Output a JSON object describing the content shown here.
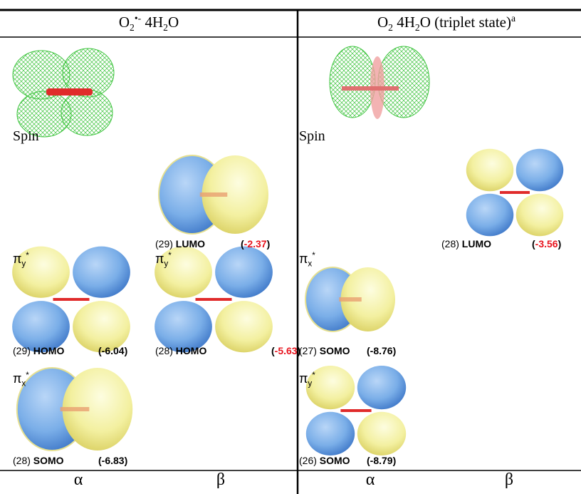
{
  "columns": [
    {
      "title": [
        "O",
        "2",
        "•-",
        " 4H",
        "2",
        "O"
      ],
      "spin_label": "Spin",
      "orbitals": [
        {
          "number": "(29)",
          "name": "LUMO",
          "energy": [
            "(",
            "-2.37",
            ")"
          ],
          "highlight": true
        },
        {
          "label": [
            "π",
            "y",
            "*"
          ],
          "number": "(29)",
          "name": "HOMO",
          "energy": [
            "(",
            "-6.04",
            ")"
          ]
        },
        {
          "label": [
            "π",
            "y",
            "*"
          ],
          "number": "(28)",
          "name": "HOMO",
          "energy": [
            "(",
            "-5.63",
            ")"
          ],
          "highlight": true
        },
        {
          "label": [
            "π",
            "x",
            "*"
          ],
          "number": "(28)",
          "name": "SOMO",
          "energy": [
            "(",
            "-6.83",
            ")"
          ]
        }
      ]
    },
    {
      "title": [
        "O",
        "2",
        " 4H",
        "2",
        "O (triplet state)",
        "a"
      ],
      "spin_label": "Spin",
      "orbitals": [
        {
          "number": "(28)",
          "name": "LUMO",
          "energy": [
            "(",
            "-3.56",
            ")"
          ],
          "highlight": true
        },
        {
          "label": [
            "π",
            "x",
            "*"
          ],
          "number": "(27)",
          "name": "SOMO",
          "energy": [
            "(",
            "-8.76",
            ")"
          ]
        },
        {
          "label": [
            "π",
            "y",
            "*"
          ],
          "number": "(26)",
          "name": "SOMO",
          "energy": [
            "(",
            "-8.79",
            ")"
          ]
        }
      ]
    }
  ],
  "footer": [
    "α",
    "β",
    "α",
    "β"
  ]
}
